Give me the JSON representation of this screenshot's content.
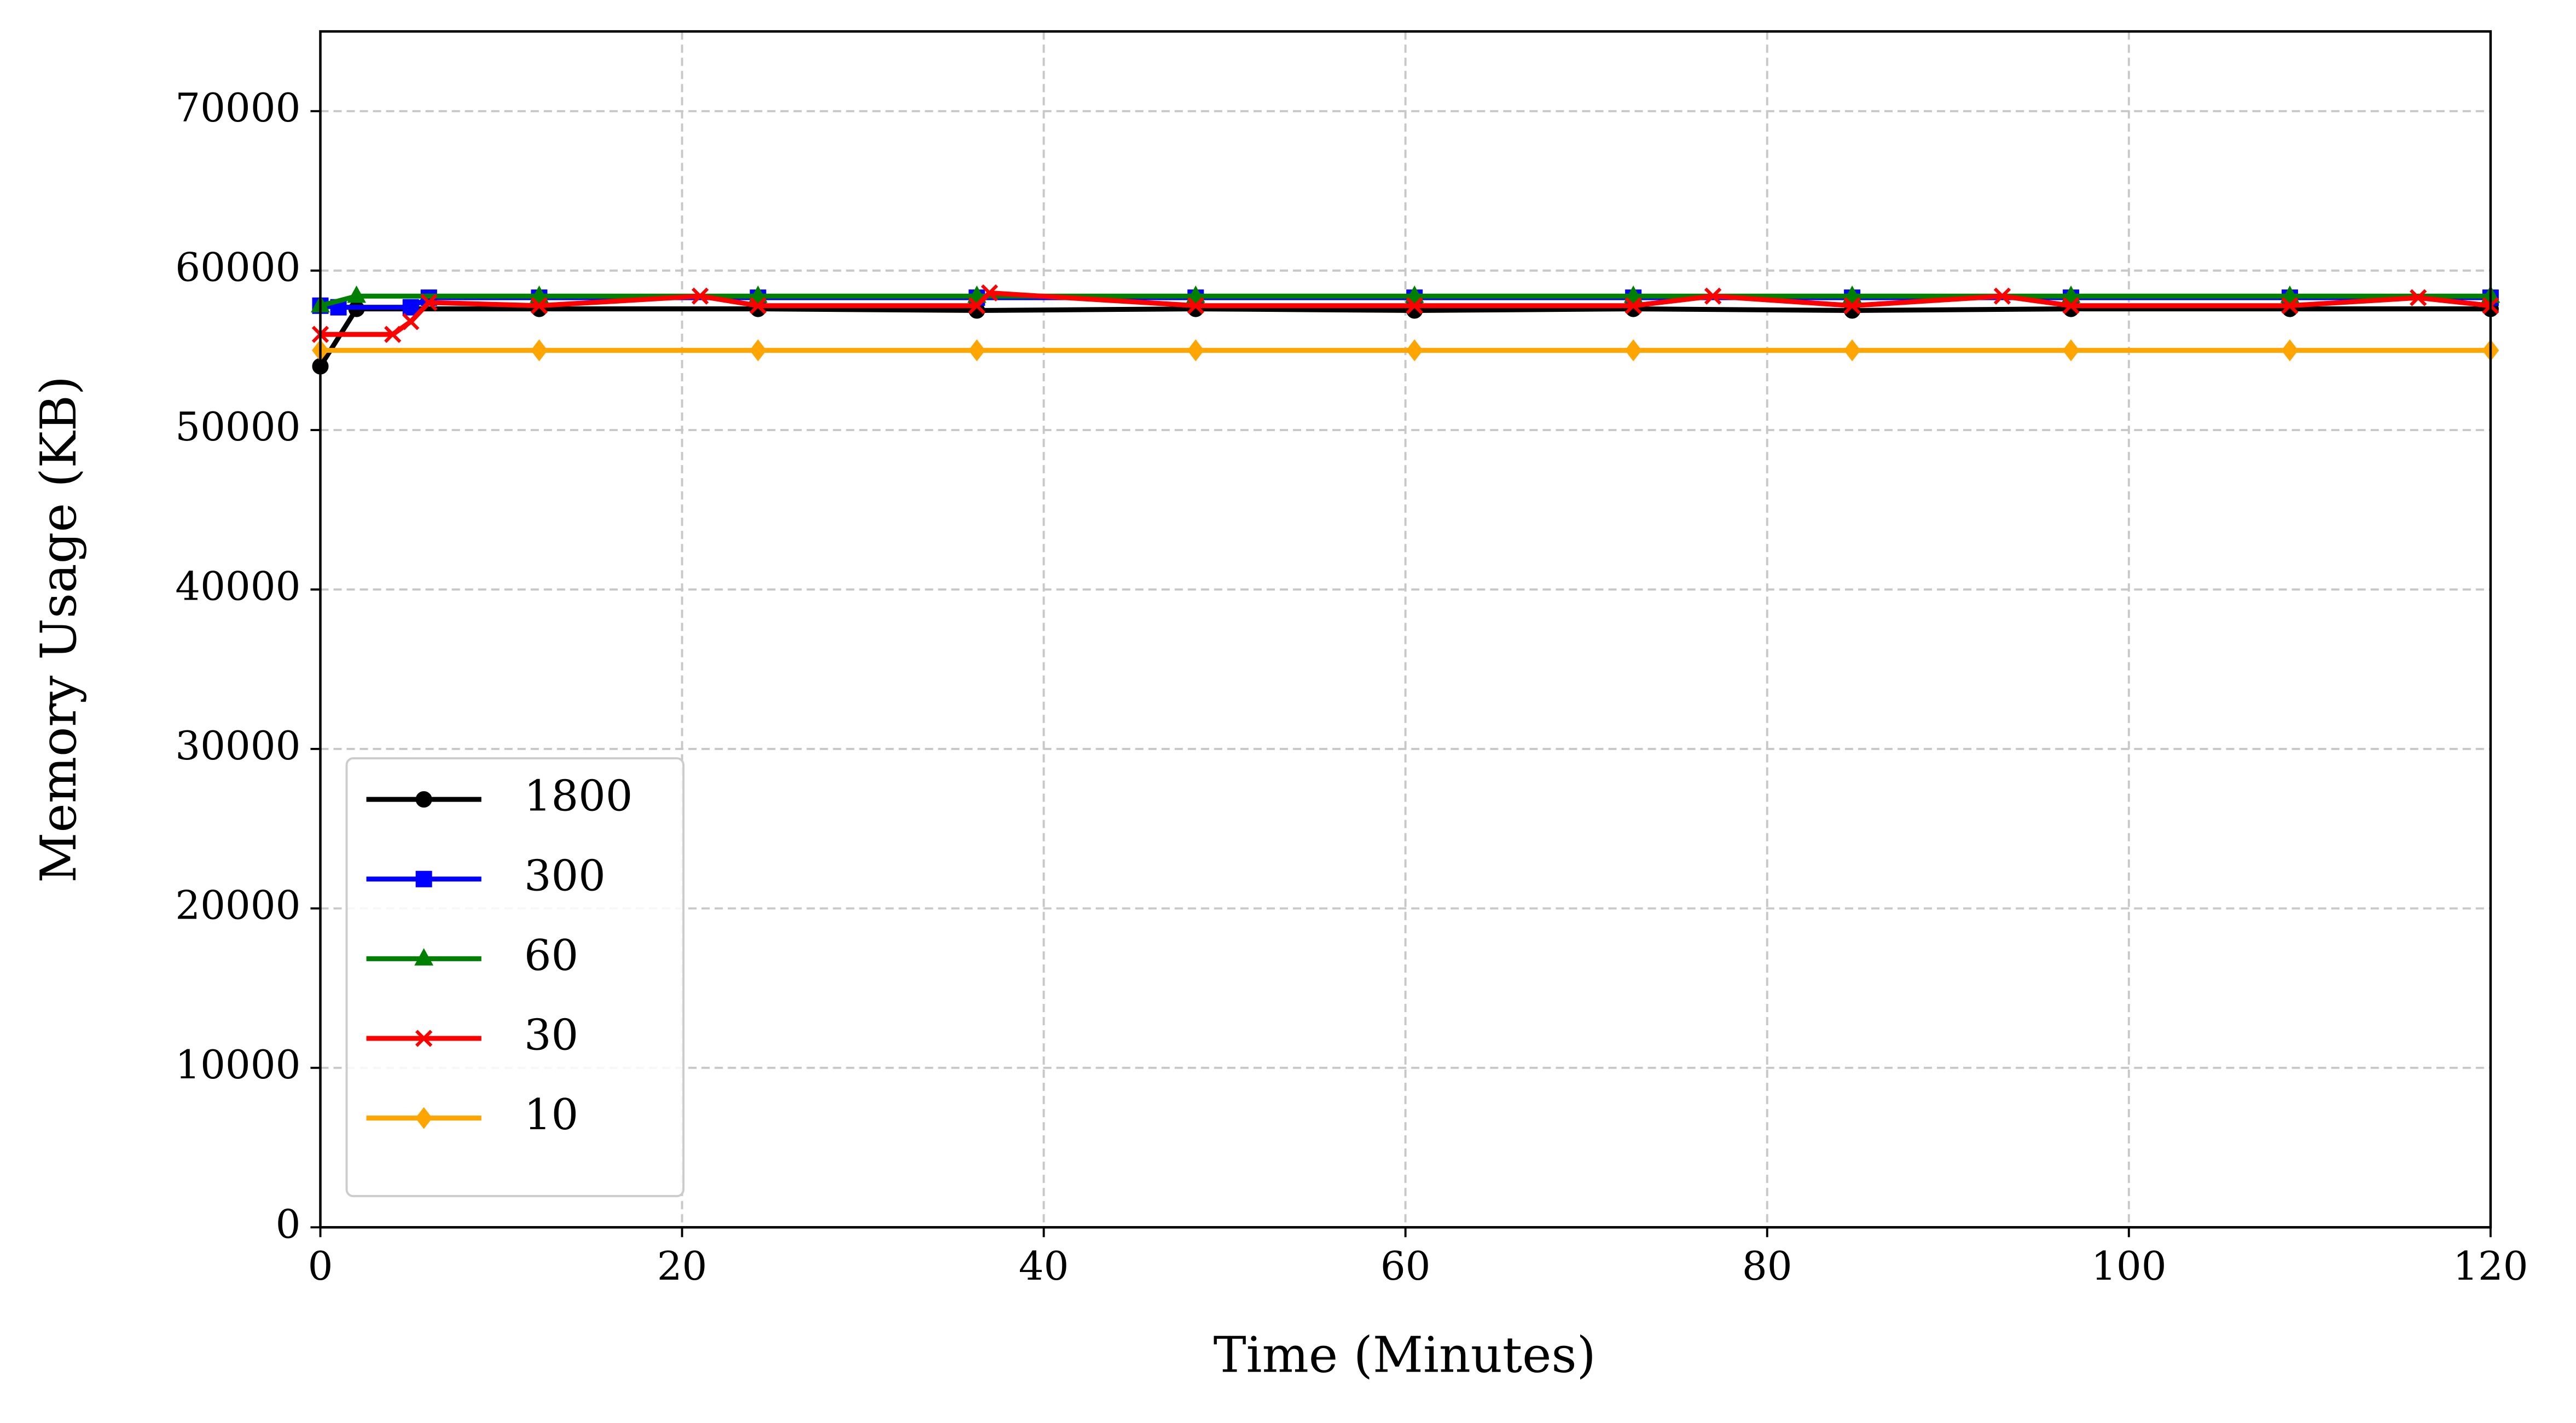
{
  "chart_data": {
    "type": "line",
    "xlabel": "Time (Minutes)",
    "ylabel": "Memory Usage (KB)",
    "xlim": [
      0,
      120
    ],
    "ylim": [
      0,
      75000
    ],
    "xticks": [
      0,
      20,
      40,
      60,
      80,
      100,
      120
    ],
    "yticks": [
      0,
      10000,
      20000,
      30000,
      40000,
      50000,
      60000,
      70000
    ],
    "grid": true,
    "legend": "lower left",
    "series": [
      {
        "name": "1800",
        "color": "#000000",
        "marker": "circle",
        "x": [
          0,
          2,
          12.1,
          24.2,
          36.3,
          48.4,
          60.5,
          72.6,
          84.7,
          96.8,
          108.9,
          120
        ],
        "values": [
          54000,
          57600,
          57600,
          57600,
          57500,
          57600,
          57500,
          57600,
          57500,
          57600,
          57600,
          57600
        ]
      },
      {
        "name": "300",
        "color": "#0000ff",
        "marker": "square",
        "x": [
          0,
          1,
          5,
          6,
          12.1,
          24.2,
          36.3,
          48.4,
          60.5,
          72.6,
          84.7,
          96.8,
          108.9,
          120
        ],
        "values": [
          57800,
          57700,
          57700,
          58300,
          58300,
          58300,
          58300,
          58300,
          58300,
          58300,
          58300,
          58300,
          58300,
          58300
        ]
      },
      {
        "name": "60",
        "color": "#008000",
        "marker": "triangle",
        "x": [
          0,
          2,
          12.1,
          24.2,
          36.3,
          48.4,
          60.5,
          72.6,
          84.7,
          96.8,
          108.9,
          120
        ],
        "values": [
          57800,
          58400,
          58400,
          58400,
          58400,
          58400,
          58400,
          58400,
          58400,
          58400,
          58400,
          58400
        ]
      },
      {
        "name": "30",
        "color": "#ff0000",
        "marker": "x",
        "x": [
          0,
          4,
          5,
          6,
          12.1,
          21,
          24.2,
          36.3,
          37,
          48.4,
          60.5,
          72.6,
          77,
          84.7,
          93,
          96.8,
          108.9,
          116,
          120
        ],
        "values": [
          56000,
          56000,
          56800,
          58000,
          57800,
          58400,
          57800,
          57800,
          58600,
          57800,
          57800,
          57800,
          58400,
          57800,
          58400,
          57800,
          57800,
          58300,
          57800
        ]
      },
      {
        "name": "10",
        "color": "#ffa500",
        "marker": "diamond",
        "x": [
          0,
          12.1,
          24.2,
          36.3,
          48.4,
          60.5,
          72.6,
          84.7,
          96.8,
          108.9,
          120
        ],
        "values": [
          55000,
          55000,
          55000,
          55000,
          55000,
          55000,
          55000,
          55000,
          55000,
          55000,
          55000
        ]
      }
    ]
  }
}
